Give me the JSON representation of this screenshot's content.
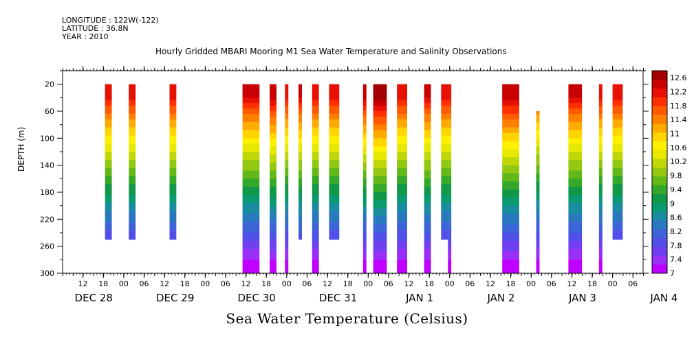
{
  "meta": {
    "longitude": "LONGITUDE : 122W(-122)",
    "latitude": "LATITUDE : 36.8N",
    "year": "YEAR : 2010"
  },
  "chart_data": {
    "type": "heatmap",
    "title": "Hourly Gridded MBARI Mooring M1 Sea Water Temperature and Salinity Observations",
    "xlabel": "Sea Water Temperature (Celsius)",
    "ylabel": "DEPTH (m)",
    "y_reversed": true,
    "ylim": [
      300,
      0
    ],
    "y_ticks": [
      20,
      60,
      100,
      140,
      180,
      220,
      260,
      300
    ],
    "x_unit": "hours since Dec 27 12:00",
    "xlim": [
      0,
      171
    ],
    "x_tick_labels": [
      "12",
      "18",
      "00",
      "06",
      "12",
      "18",
      "00",
      "06",
      "12",
      "18",
      "00",
      "06",
      "12",
      "18",
      "00",
      "06",
      "12",
      "18",
      "00",
      "06",
      "12",
      "18",
      "00",
      "06",
      "12",
      "18",
      "00",
      "06"
    ],
    "x_day_labels": [
      "DEC 28",
      "DEC 29",
      "DEC 30",
      "DEC 31",
      "JAN  1",
      "JAN  2",
      "JAN  3",
      "JAN  4"
    ],
    "colorbar": {
      "ticks": [
        "12.6",
        "12.2",
        "11.8",
        "11.4",
        "11",
        "10.6",
        "10.2",
        "9.8",
        "9.4",
        "9",
        "8.6",
        "8.2",
        "7.8",
        "7.4",
        "7"
      ],
      "min": 7,
      "max": 12.8,
      "colors": [
        "#c000ff",
        "#9a30f8",
        "#7040f0",
        "#5050e8",
        "#3c64d8",
        "#2a78c0",
        "#1a8ca0",
        "#0a9a70",
        "#109848",
        "#34a828",
        "#62b818",
        "#92c810",
        "#c0d808",
        "#e8e800",
        "#fff000",
        "#ffd400",
        "#ffaa00",
        "#ff8000",
        "#ff5a00",
        "#ff3000",
        "#e81000",
        "#c80000",
        "#a40000"
      ]
    },
    "columns": [
      {
        "x0": 12.5,
        "x1": 14.5,
        "top": 20,
        "bottom": 250,
        "surface": 12.2
      },
      {
        "x0": 19.5,
        "x1": 21.5,
        "top": 20,
        "bottom": 250,
        "surface": 12.2
      },
      {
        "x0": 31.5,
        "x1": 33.5,
        "top": 20,
        "bottom": 250,
        "surface": 12.2
      },
      {
        "x0": 53.0,
        "x1": 58.0,
        "top": 20,
        "bottom": 300,
        "surface": 12.3
      },
      {
        "x0": 61.0,
        "x1": 63.0,
        "top": 20,
        "bottom": 300,
        "surface": 12.4
      },
      {
        "x0": 65.5,
        "x1": 66.5,
        "top": 20,
        "bottom": 300,
        "surface": 12.2
      },
      {
        "x0": 69.5,
        "x1": 70.5,
        "top": 20,
        "bottom": 250,
        "surface": 12.3
      },
      {
        "x0": 73.5,
        "x1": 75.5,
        "top": 20,
        "bottom": 300,
        "surface": 12.2
      },
      {
        "x0": 78.5,
        "x1": 81.5,
        "top": 20,
        "bottom": 250,
        "surface": 12.2
      },
      {
        "x0": 88.5,
        "x1": 89.5,
        "top": 20,
        "bottom": 300,
        "surface": 12.4
      },
      {
        "x0": 91.5,
        "x1": 95.5,
        "top": 20,
        "bottom": 300,
        "surface": 12.7
      },
      {
        "x0": 98.5,
        "x1": 101.5,
        "top": 20,
        "bottom": 300,
        "surface": 12.2
      },
      {
        "x0": 106.5,
        "x1": 108.5,
        "top": 20,
        "bottom": 300,
        "surface": 12.3
      },
      {
        "x0": 111.5,
        "x1": 113.5,
        "top": 20,
        "bottom": 250,
        "surface": 12.2
      },
      {
        "x0": 113.5,
        "x1": 114.5,
        "top": 20,
        "bottom": 300,
        "surface": 12.2
      },
      {
        "x0": 129.5,
        "x1": 134.5,
        "top": 20,
        "bottom": 300,
        "surface": 12.5
      },
      {
        "x0": 139.5,
        "x1": 140.5,
        "top": 60,
        "bottom": 300,
        "surface": 12.0
      },
      {
        "x0": 149.0,
        "x1": 153.0,
        "top": 20,
        "bottom": 300,
        "surface": 12.3
      },
      {
        "x0": 158.0,
        "x1": 159.0,
        "top": 20,
        "bottom": 300,
        "surface": 12.2
      },
      {
        "x0": 162.0,
        "x1": 165.0,
        "top": 20,
        "bottom": 250,
        "surface": 12.2
      }
    ]
  }
}
